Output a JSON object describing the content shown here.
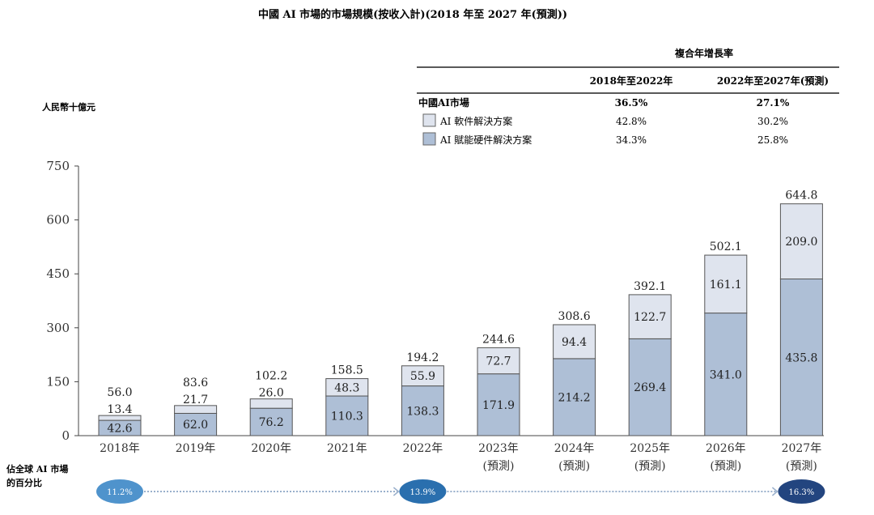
{
  "chart_data": {
    "type": "bar",
    "stacked": true,
    "title": "中國 AI 市場的市場規模(按收入計)(2018 年至 2027 年(預測))",
    "ylabel": "人民幣十億元",
    "ylim": [
      0,
      750
    ],
    "yticks": [
      "0",
      "150",
      "300",
      "450",
      "600",
      "750"
    ],
    "categories": [
      "2018年",
      "2019年",
      "2020年",
      "2021年",
      "2022年",
      "2023年",
      "2024年",
      "2025年",
      "2026年",
      "2027年"
    ],
    "forecast_label": "(預測)",
    "forecast_from_index": 5,
    "series": [
      {
        "name": "AI 賦能硬件解決方案",
        "color": "#aebfd6",
        "values": [
          42.6,
          62.0,
          76.2,
          110.3,
          138.3,
          171.9,
          214.2,
          269.4,
          341.0,
          435.8
        ]
      },
      {
        "name": "AI 軟件解決方案",
        "color": "#dfe4ee",
        "values": [
          13.4,
          21.7,
          26.0,
          48.3,
          55.9,
          72.7,
          94.4,
          122.7,
          161.1,
          209.0
        ]
      }
    ],
    "totals": [
      56.0,
      83.6,
      102.2,
      158.5,
      194.2,
      244.6,
      308.6,
      392.1,
      502.1,
      644.8
    ],
    "cagr_table": {
      "heading": "複合年增長率",
      "columns": [
        "2018年至2022年",
        "2022年至2027年(預測)"
      ],
      "rows": [
        {
          "label": "中國AI市場",
          "values": [
            "36.5%",
            "27.1%"
          ],
          "bold": true
        },
        {
          "label": "AI 軟件解決方案",
          "values": [
            "42.8%",
            "30.2%"
          ],
          "swatch": "#dfe4ee"
        },
        {
          "label": "AI 賦能硬件解決方案",
          "values": [
            "34.3%",
            "25.8%"
          ],
          "swatch": "#aebfd6"
        }
      ]
    },
    "global_share": {
      "label_line1": "佔全球 AI 市場",
      "label_line2": "的百分比",
      "points": [
        {
          "year_index": 0,
          "value": "11.2%",
          "color": "#4f93cc"
        },
        {
          "year_index": 4,
          "value": "13.9%",
          "color": "#2a6fae"
        },
        {
          "year_index": 9,
          "value": "16.3%",
          "color": "#23457f"
        }
      ]
    }
  }
}
